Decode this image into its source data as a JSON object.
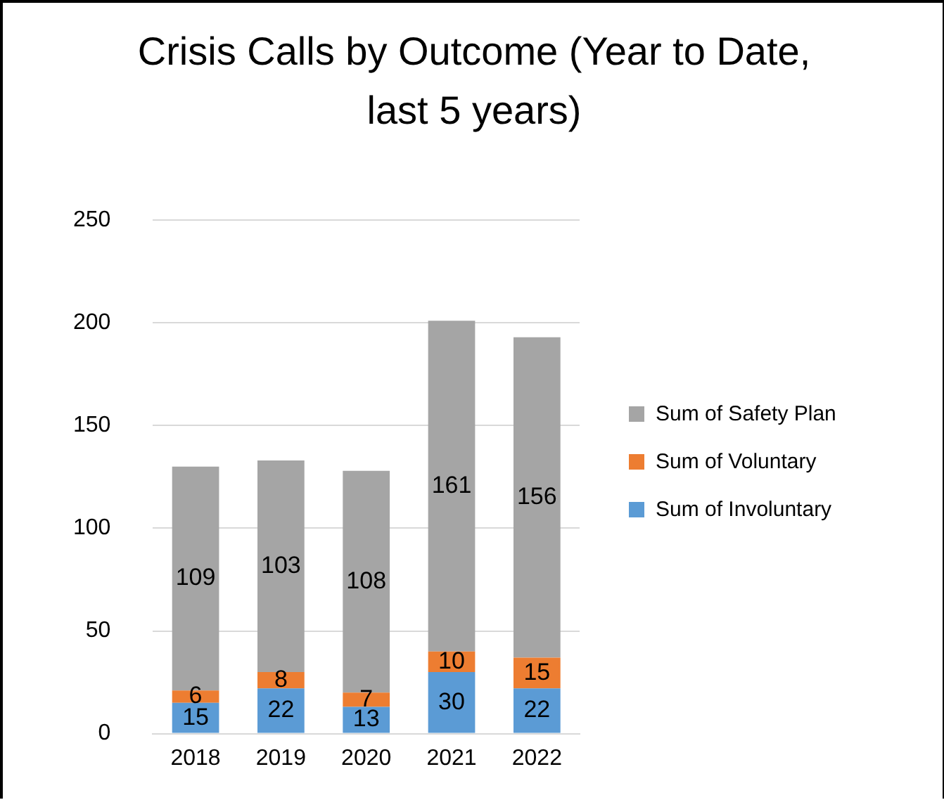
{
  "chart_data": {
    "type": "bar",
    "title": "Crisis Calls by Outcome (Year to Date, last 5 years)",
    "categories": [
      "2018",
      "2019",
      "2020",
      "2021",
      "2022"
    ],
    "stacked": true,
    "data_labels": true,
    "legend": "right",
    "grid": "y",
    "ylim": [
      0,
      250
    ],
    "yticks": [
      0,
      50,
      100,
      150,
      200,
      250
    ],
    "series": [
      {
        "name": "Sum of Involuntary",
        "color": "#5b9bd5",
        "values": [
          15,
          22,
          13,
          30,
          22
        ]
      },
      {
        "name": "Sum of Voluntary",
        "color": "#ed7d31",
        "values": [
          6,
          8,
          7,
          10,
          15
        ]
      },
      {
        "name": "Sum of Safety Plan",
        "color": "#a5a5a5",
        "values": [
          109,
          103,
          108,
          161,
          156
        ]
      }
    ]
  }
}
